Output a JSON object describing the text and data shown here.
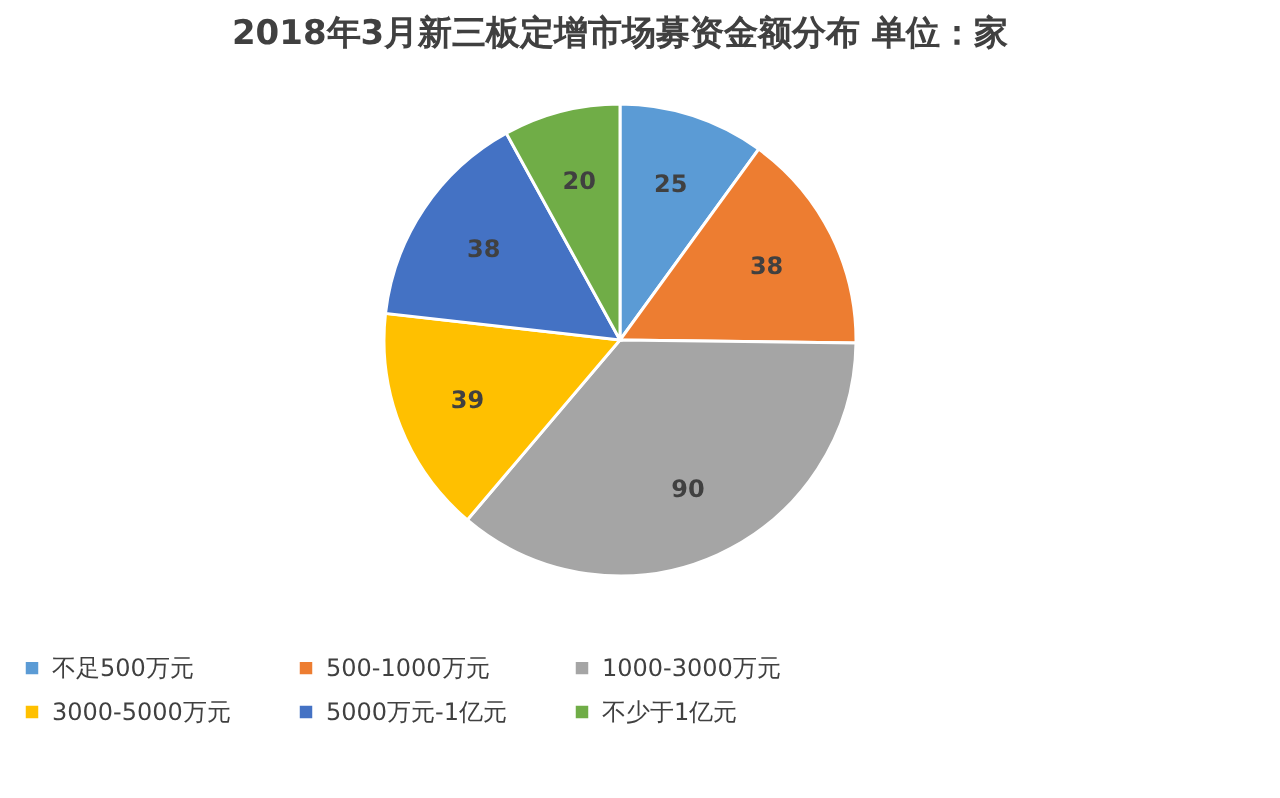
{
  "chart_data": {
    "type": "pie",
    "title": "2018年3月新三板定增市场募资金额分布  单位：家",
    "categories": [
      "不足500万元",
      "500-1000万元",
      "1000-3000万元",
      "3000-5000万元",
      "5000万元-1亿元",
      "不少于1亿元"
    ],
    "values": [
      25,
      38,
      90,
      39,
      38,
      20
    ],
    "colors": [
      "#5b9bd5",
      "#ed7d31",
      "#a5a5a5",
      "#ffc000",
      "#4472c4",
      "#70ad47"
    ],
    "data_labels": true,
    "legend": "bottom"
  }
}
